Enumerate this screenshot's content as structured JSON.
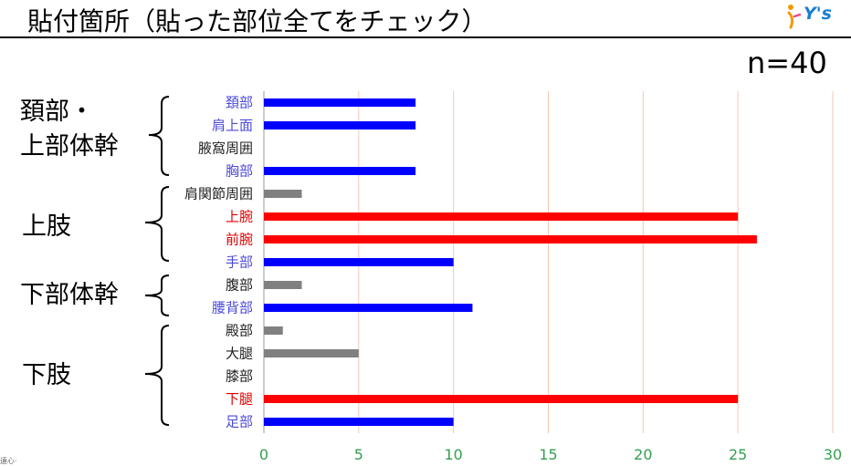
{
  "title": "貼付箇所（貼った部位全てをチェック）",
  "logo_text": "Y's",
  "sample_size": "n=40",
  "groups": [
    {
      "lines": [
        "頚部・",
        "上部体幹"
      ]
    },
    {
      "lines": [
        "上肢"
      ]
    },
    {
      "lines": [
        "下部体幹"
      ]
    },
    {
      "lines": [
        "下肢"
      ]
    }
  ],
  "colors": {
    "blue": "#0000ff",
    "red": "#ff0000",
    "gray": "#808080",
    "label_blue": "#4a4ad8",
    "label_red": "#e00000",
    "label_black": "#222222",
    "tick_green": "#33a050",
    "gridline": "#f4c7b3",
    "bracket": "#000000"
  },
  "chart_data": {
    "type": "bar",
    "orientation": "horizontal",
    "categories": [
      "頚部",
      "肩上面",
      "腋窩周囲",
      "胸部",
      "肩関節周囲",
      "上腕",
      "前腕",
      "手部",
      "腹部",
      "腰背部",
      "殿部",
      "大腿",
      "膝部",
      "下腿",
      "足部"
    ],
    "values": [
      8,
      8,
      0,
      8,
      2,
      25,
      26,
      10,
      2,
      11,
      1,
      5,
      0,
      25,
      10
    ],
    "bar_colors": [
      "blue",
      "blue",
      "blue",
      "blue",
      "gray",
      "red",
      "red",
      "blue",
      "gray",
      "blue",
      "gray",
      "gray",
      "gray",
      "red",
      "blue"
    ],
    "label_colors": [
      "label_blue",
      "label_blue",
      "label_black",
      "label_blue",
      "label_black",
      "label_red",
      "label_red",
      "label_blue",
      "label_black",
      "label_blue",
      "label_black",
      "label_black",
      "label_black",
      "label_red",
      "label_blue"
    ],
    "xlim": [
      0,
      30
    ],
    "xticks": [
      "0",
      "5",
      "10",
      "15",
      "20",
      "25",
      "30"
    ],
    "grid": "vertical",
    "legend": "none"
  },
  "footnote": "遠心·"
}
